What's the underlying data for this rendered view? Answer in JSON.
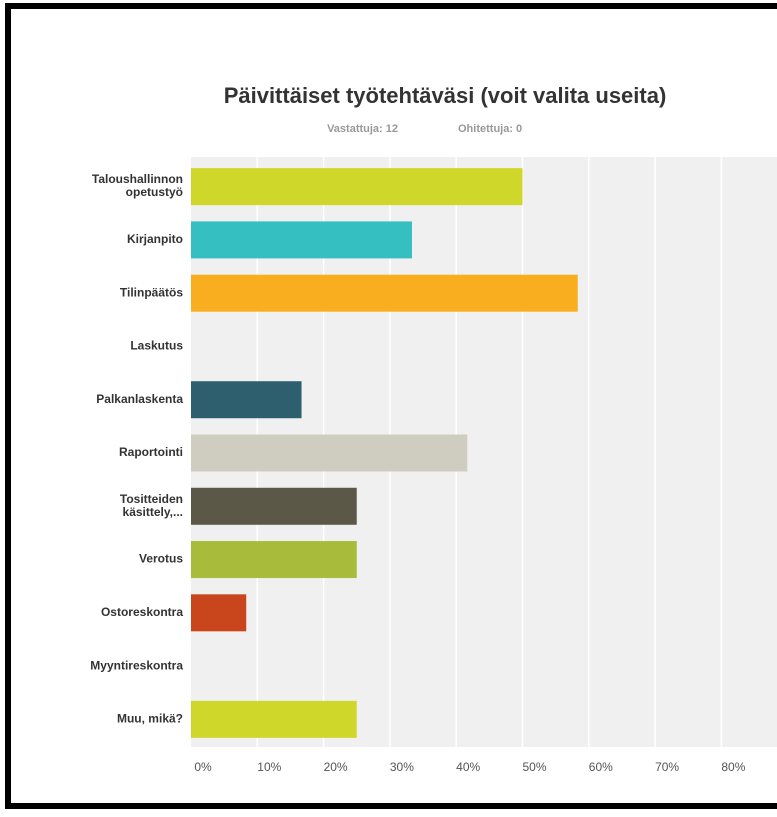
{
  "chart_data": {
    "type": "hbar",
    "title": "Päivittäiset työtehtäväsi (voit valita useita)",
    "subtitle": [
      "Vastattuja: 12",
      "Ohitettuja: 0"
    ],
    "categories": [
      "Taloushallinnon\nopetustyö",
      "Kirjanpito",
      "Tilinpäätös",
      "Laskutus",
      "Palkanlaskenta",
      "Raportointi",
      "Tositteiden\nkäsittely,...",
      "Verotus",
      "Ostoreskontra",
      "Myyntireskontra",
      "Muu, mikä?"
    ],
    "values": [
      50,
      33.33,
      58.33,
      0,
      16.67,
      41.67,
      25,
      25,
      8.33,
      0,
      25
    ],
    "colors": [
      "#d0d72b",
      "#35bfc1",
      "#f8ae1f",
      "#e7b04a",
      "#2d5f6e",
      "#cfcdbf",
      "#5b5847",
      "#a8bb3b",
      "#c9461c",
      "#8fa4ae",
      "#d0d72b"
    ],
    "xlim": [
      0,
      88
    ],
    "xticks": [
      {
        "value": 0,
        "label": "0%"
      },
      {
        "value": 10,
        "label": "10%"
      },
      {
        "value": 20,
        "label": "20%"
      },
      {
        "value": 30,
        "label": "30%"
      },
      {
        "value": 40,
        "label": "40%"
      },
      {
        "value": 50,
        "label": "50%"
      },
      {
        "value": 60,
        "label": "60%"
      },
      {
        "value": 70,
        "label": "70%"
      },
      {
        "value": 80,
        "label": "80%"
      }
    ],
    "grid": true
  }
}
